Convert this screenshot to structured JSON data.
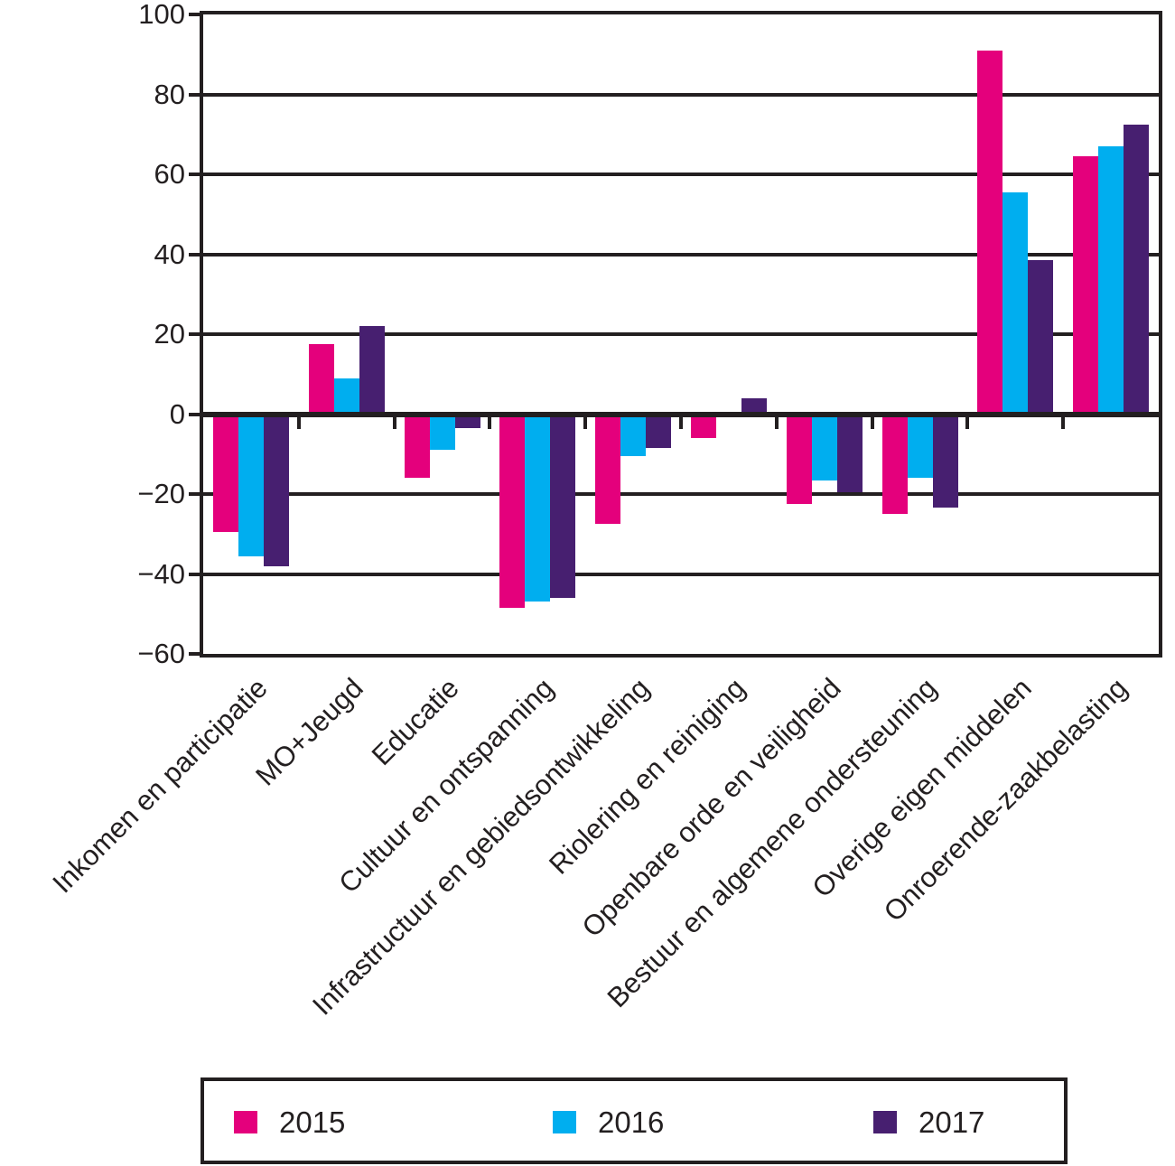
{
  "chart_data": {
    "type": "bar",
    "categories": [
      "Inkomen en participatie",
      "MO+Jeugd",
      "Educatie",
      "Cultuur en ontspanning",
      "Infrastructuur en gebiedsontwikkeling",
      "Riolering en reiniging",
      "Openbare orde en veiligheid",
      "Bestuur en algemene ondersteuning",
      "Overige eigen middelen",
      "Onroerende-zaakbelasting"
    ],
    "series": [
      {
        "name": "2015",
        "color": "#E4007C",
        "values": [
          -29.5,
          17.5,
          -16,
          -48.5,
          -27.5,
          -6,
          -22.5,
          -25,
          91,
          64.5
        ]
      },
      {
        "name": "2016",
        "color": "#00AEEF",
        "values": [
          -35.5,
          9,
          -9,
          -47,
          -10.5,
          0.5,
          -16.5,
          -16,
          55.5,
          67
        ]
      },
      {
        "name": "2017",
        "color": "#471F70",
        "values": [
          -38,
          22,
          -3.5,
          -46,
          -8.5,
          4,
          -19.5,
          -23.5,
          38.5,
          72.5
        ]
      }
    ],
    "title": "",
    "xlabel": "",
    "ylabel": "",
    "ylim": [
      -60,
      100
    ],
    "ytick_step": 20,
    "ytick_labels": [
      "100",
      "80",
      "60",
      "40",
      "20",
      "0",
      "−20",
      "−40",
      "−60"
    ],
    "grid": "horizontal",
    "legend_position": "bottom",
    "axis_color": "#231F20",
    "background_color": "#FFFFFF"
  }
}
